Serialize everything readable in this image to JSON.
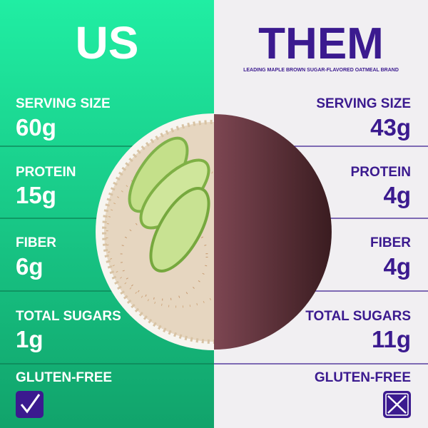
{
  "header": {
    "us": "US",
    "them": "THEM",
    "them_subtitle": "LEADING MAPLE BROWN SUGAR-FLAVORED OATMEAL BRAND"
  },
  "rows": [
    {
      "label": "SERVING SIZE",
      "us": "60g",
      "them": "43g"
    },
    {
      "label": "PROTEIN",
      "us": "15g",
      "them": "4g"
    },
    {
      "label": "FIBER",
      "us": "6g",
      "them": "4g"
    },
    {
      "label": "TOTAL SUGARS",
      "us": "1g",
      "them": "11g"
    }
  ],
  "gluten_free": {
    "label": "GLUTEN-FREE"
  }
}
